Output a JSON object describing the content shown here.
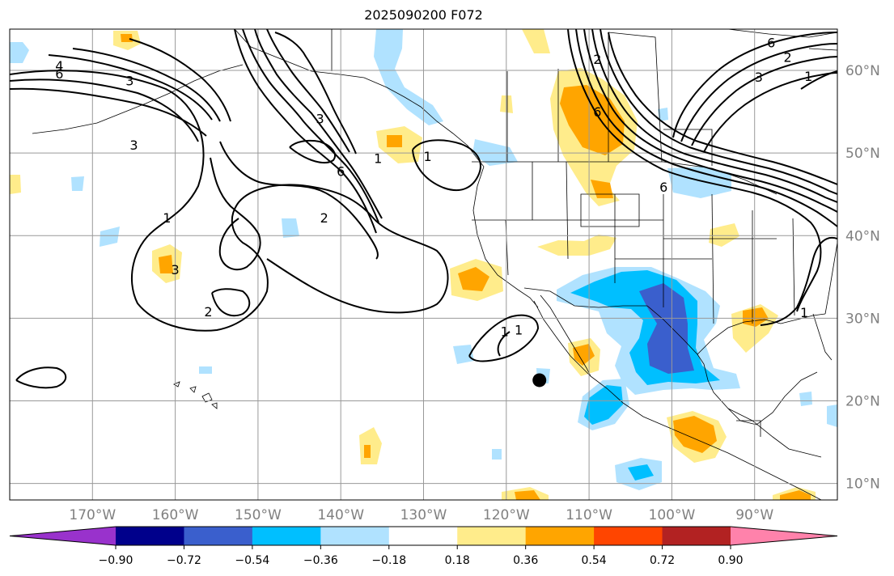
{
  "title": "2025090200 F072",
  "map": {
    "lon_range": [
      -180,
      -80
    ],
    "lat_range": [
      8,
      65
    ],
    "lon_ticks": [
      -170,
      -160,
      -150,
      -140,
      -130,
      -120,
      -110,
      -100,
      -90
    ],
    "lat_ticks": [
      10,
      20,
      30,
      40,
      50,
      60
    ],
    "lon_labels": [
      "170°W",
      "160°W",
      "150°W",
      "140°W",
      "130°W",
      "120°W",
      "110°W",
      "100°W",
      "90°W"
    ],
    "lat_labels": [
      "10°N",
      "20°N",
      "30°N",
      "40°N",
      "50°N",
      "60°N"
    ],
    "grid": true,
    "marker": {
      "lon": -116,
      "lat": 22.5,
      "shape": "filled circle",
      "color": "#000000"
    }
  },
  "contour_labels": [
    {
      "text": "4",
      "lon": -174,
      "lat": 60.6
    },
    {
      "text": "6",
      "lon": -174,
      "lat": 59.6
    },
    {
      "text": "3",
      "lon": -165.5,
      "lat": 58.8
    },
    {
      "text": "3",
      "lon": -165,
      "lat": 51
    },
    {
      "text": "6",
      "lon": -140,
      "lat": 47.8
    },
    {
      "text": "3",
      "lon": -142.5,
      "lat": 54.2
    },
    {
      "text": "2",
      "lon": -142,
      "lat": 42.2
    },
    {
      "text": "1",
      "lon": -161,
      "lat": 42.2
    },
    {
      "text": "3",
      "lon": -160,
      "lat": 35.9
    },
    {
      "text": "2",
      "lon": -156,
      "lat": 30.8
    },
    {
      "text": "1",
      "lon": -135.5,
      "lat": 49.4
    },
    {
      "text": "1",
      "lon": -129.5,
      "lat": 49.6
    },
    {
      "text": "1",
      "lon": -118.5,
      "lat": 28.6
    },
    {
      "text": "2",
      "lon": -109,
      "lat": 61.4
    },
    {
      "text": "6",
      "lon": -109,
      "lat": 55
    },
    {
      "text": "6",
      "lon": -101,
      "lat": 45.9
    },
    {
      "text": "6",
      "lon": -88,
      "lat": 63.4
    },
    {
      "text": "3",
      "lon": -89.5,
      "lat": 59.2
    },
    {
      "text": "2",
      "lon": -86,
      "lat": 61.6
    },
    {
      "text": "1",
      "lon": -83.5,
      "lat": 59.3
    },
    {
      "text": "1",
      "lon": -84,
      "lat": 30.7
    },
    {
      "text": "1",
      "lon": -120.2,
      "lat": 28.4
    }
  ],
  "colorbar": {
    "colors": [
      "#9932cc",
      "#00008b",
      "#3a5fcd",
      "#00bfff",
      "#b0e2ff",
      "#ffffff",
      "#ffec8b",
      "#ffa500",
      "#ff4500",
      "#b22222",
      "#ff82ab"
    ],
    "tick_labels": [
      "−0.90",
      "−0.72",
      "−0.54",
      "−0.36",
      "−0.18",
      "0.18",
      "0.36",
      "0.54",
      "0.72",
      "0.90"
    ],
    "extend": "both"
  }
}
